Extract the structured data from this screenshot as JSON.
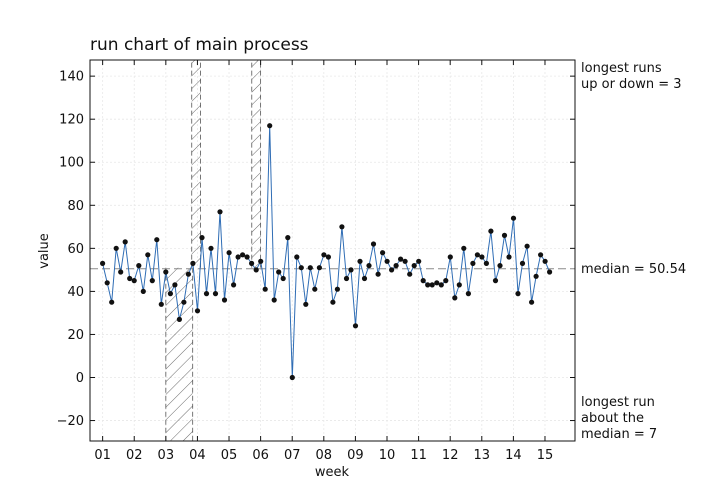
{
  "chart_data": {
    "type": "line",
    "title": "run chart of main process",
    "xlabel": "week",
    "ylabel": "value",
    "xlim": [
      0.6,
      15.95
    ],
    "ylim": [
      -29.5,
      147.5
    ],
    "x_ticks": [
      1,
      2,
      3,
      4,
      5,
      6,
      7,
      8,
      9,
      10,
      11,
      12,
      13,
      14,
      15
    ],
    "x_tick_labels": [
      "01",
      "02",
      "03",
      "04",
      "05",
      "06",
      "07",
      "08",
      "09",
      "10",
      "11",
      "12",
      "13",
      "14",
      "15"
    ],
    "y_ticks": [
      -20,
      0,
      20,
      40,
      60,
      80,
      100,
      120,
      140
    ],
    "y_tick_labels": [
      "−20",
      "0",
      "20",
      "40",
      "60",
      "80",
      "100",
      "120",
      "140"
    ],
    "grid": true,
    "series": [
      {
        "name": "",
        "color": "#2f6db5",
        "marker_color": "#111111",
        "x_start": 1.0,
        "x_step": 0.1429,
        "values": [
          53,
          44,
          35,
          60,
          49,
          63,
          46,
          45,
          52,
          40,
          57,
          45,
          64,
          34,
          49,
          39,
          43,
          27,
          35,
          48,
          53,
          31,
          65,
          39,
          60,
          39,
          77,
          36,
          58,
          43,
          56,
          57,
          56,
          53,
          50,
          54,
          41,
          117,
          36,
          49,
          46,
          65,
          0,
          56,
          51,
          34,
          51,
          41,
          51,
          57,
          56,
          35,
          41,
          70,
          46,
          50,
          24,
          54,
          46,
          52,
          62,
          48,
          58,
          54,
          50,
          52,
          55,
          54,
          48,
          52,
          54,
          45,
          43,
          43,
          44,
          43,
          45,
          56,
          37,
          43,
          60,
          39,
          53,
          57,
          56,
          53,
          68,
          45,
          52,
          66,
          56,
          74,
          39,
          53,
          61,
          35,
          47,
          57,
          54,
          49
        ]
      }
    ],
    "median": 50.54,
    "median_label": "median = 50.54",
    "shaded_regions": [
      {
        "x_start": 3.0,
        "x_end": 3.85,
        "y_from": -30,
        "y_to": 51
      },
      {
        "x_start": 3.82,
        "x_end": 4.1,
        "y_from": 51,
        "y_to": 150
      },
      {
        "x_start": 5.72,
        "x_end": 6.0,
        "y_from": 51,
        "y_to": 150
      }
    ],
    "annotations": {
      "runs_up_down": [
        "longest runs",
        "up or down = 3"
      ],
      "runs_median": [
        "longest run",
        "about the",
        "median = 7"
      ]
    }
  }
}
